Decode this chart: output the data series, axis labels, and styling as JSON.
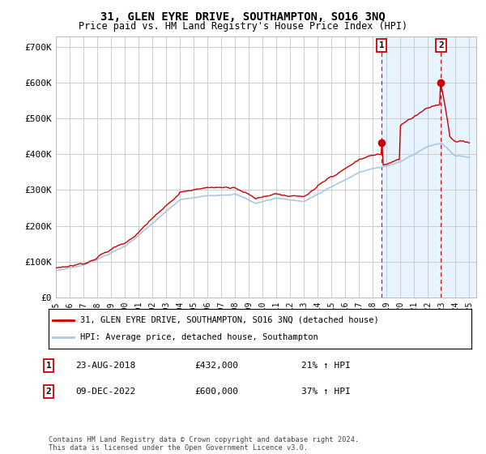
{
  "title": "31, GLEN EYRE DRIVE, SOUTHAMPTON, SO16 3NQ",
  "subtitle": "Price paid vs. HM Land Registry's House Price Index (HPI)",
  "ylabel_ticks": [
    "£0",
    "£100K",
    "£200K",
    "£300K",
    "£400K",
    "£500K",
    "£600K",
    "£700K"
  ],
  "ytick_values": [
    0,
    100000,
    200000,
    300000,
    400000,
    500000,
    600000,
    700000
  ],
  "ylim": [
    0,
    730000
  ],
  "xlim_start": 1995.0,
  "xlim_end": 2025.5,
  "background_color": "#ffffff",
  "grid_color": "#cccccc",
  "hpi_color": "#aac8e0",
  "price_color": "#cc0000",
  "shade_color": "#ddeeff",
  "purchase1_date": 2018.64,
  "purchase1_price": 432000,
  "purchase2_date": 2022.94,
  "purchase2_price": 600000,
  "legend_entry1": "31, GLEN EYRE DRIVE, SOUTHAMPTON, SO16 3NQ (detached house)",
  "legend_entry2": "HPI: Average price, detached house, Southampton",
  "annotation1_date": "23-AUG-2018",
  "annotation1_price": "£432,000",
  "annotation1_hpi": "21% ↑ HPI",
  "annotation2_date": "09-DEC-2022",
  "annotation2_price": "£600,000",
  "annotation2_hpi": "37% ↑ HPI",
  "footer": "Contains HM Land Registry data © Crown copyright and database right 2024.\nThis data is licensed under the Open Government Licence v3.0."
}
